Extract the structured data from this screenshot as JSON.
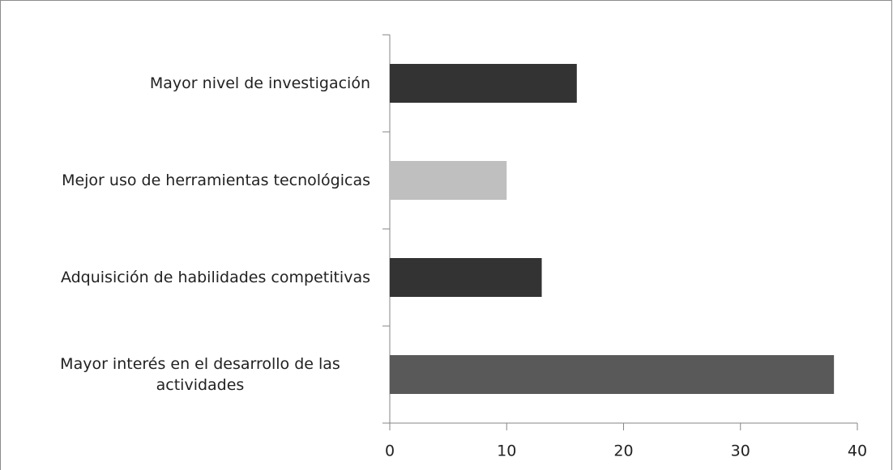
{
  "chart_data": {
    "type": "bar",
    "orientation": "horizontal",
    "categories": [
      "Mayor nivel de investigación",
      "Mejor uso de herramientas tecnológicas",
      "Adquisición de habilidades competitivas",
      "Mayor interés en el desarrollo de las actividades"
    ],
    "values": [
      16,
      10,
      13,
      38
    ],
    "colors": [
      "#333333",
      "#bfbfbf",
      "#333333",
      "#595959"
    ],
    "xlim": [
      0,
      40
    ],
    "xticks": [
      0,
      10,
      20,
      30,
      40
    ],
    "grid": false
  }
}
